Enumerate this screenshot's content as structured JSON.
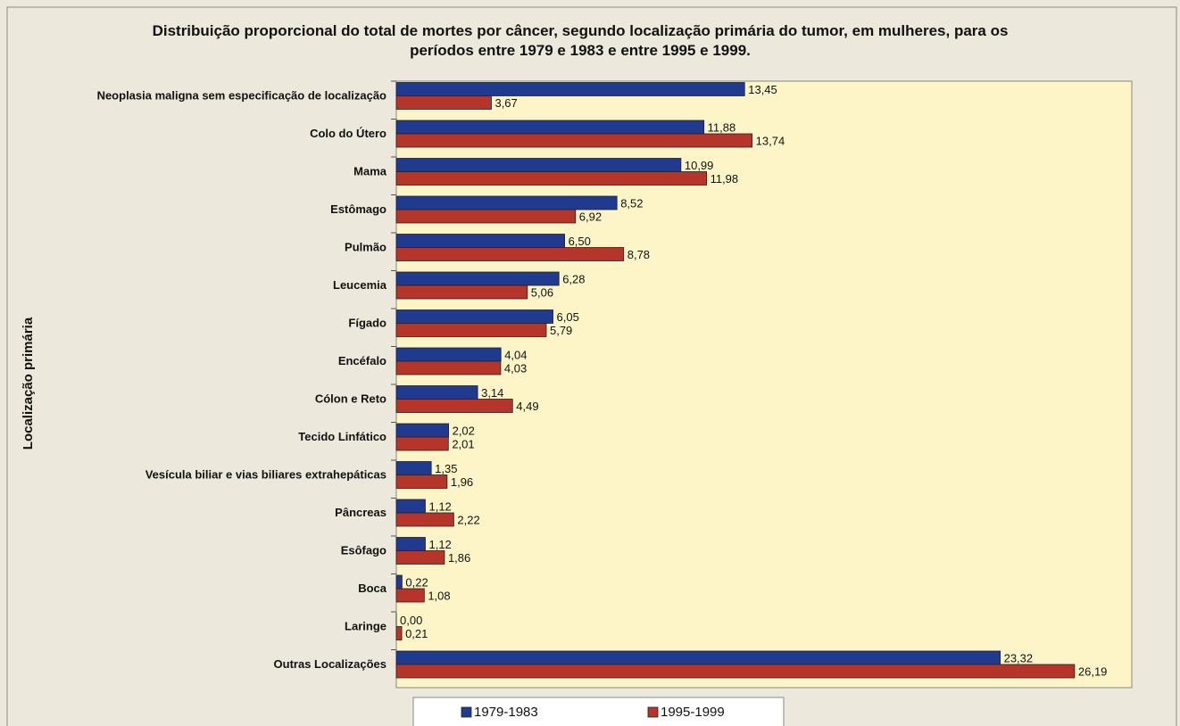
{
  "chart_data": {
    "type": "barh",
    "title": "Distribuição proporcional do total de mortes por câncer, segundo localização primária do tumor,  em mulheres, para os períodos entre 1979 e 1983 e entre 1995 e 1999.",
    "y_label": "Localização primária",
    "categories": [
      "Neoplasia maligna sem especificação de localização",
      "Colo do Útero",
      "Mama",
      "Estômago",
      "Pulmão",
      "Leucemia",
      "Fígado",
      "Encéfalo",
      "Cólon e Reto",
      "Tecido Linfático",
      "Vesícula biliar e vias biliares extrahepáticas",
      "Pâncreas",
      "Esôfago",
      "Boca",
      "Laringe",
      "Outras Localizações"
    ],
    "series": [
      {
        "name": "1979-1983",
        "color": "#1f3a8f",
        "values": [
          13.45,
          11.88,
          10.99,
          8.52,
          6.5,
          6.28,
          6.05,
          4.04,
          3.14,
          2.02,
          1.35,
          1.12,
          1.12,
          0.22,
          0,
          23.32
        ],
        "value_labels": [
          "13,45",
          "11,88",
          "10,99",
          "8,52",
          "6,50",
          "6,28",
          "6,05",
          "4,04",
          "3,14",
          "2,02",
          "1,35",
          "1,12",
          "1,12",
          "0,22",
          "0,00",
          "23,32"
        ]
      },
      {
        "name": "1995-1999",
        "color": "#b5352b",
        "values": [
          3.67,
          13.74,
          11.98,
          6.92,
          8.78,
          5.06,
          5.79,
          4.03,
          4.49,
          2.01,
          1.96,
          2.22,
          1.86,
          1.08,
          0.21,
          26.19
        ],
        "value_labels": [
          "3,67",
          "13,74",
          "11,98",
          "6,92",
          "8,78",
          "5,06",
          "5,79",
          "4,03",
          "4,49",
          "2,01",
          "1,96",
          "2,22",
          "1,86",
          "1,08",
          "0,21",
          "26,19"
        ]
      }
    ],
    "xlim": [
      0,
      28.4
    ],
    "legend": "bottom"
  }
}
